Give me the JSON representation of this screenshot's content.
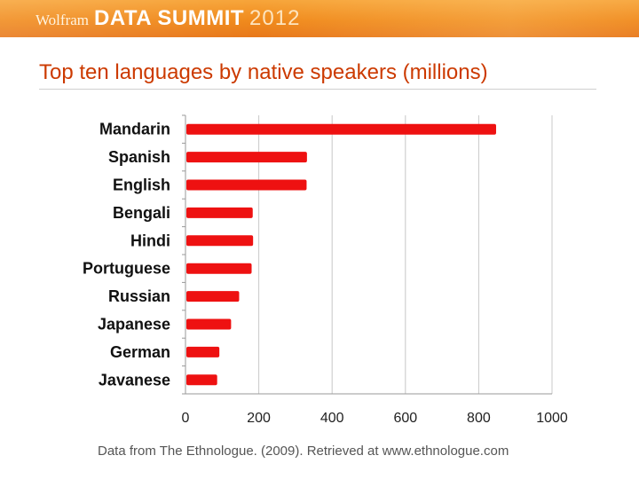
{
  "header": {
    "brand": "Wolfram",
    "event": "DATA SUMMIT",
    "year": "2012"
  },
  "slide": {
    "title": "Top ten languages by native speakers (millions)",
    "source": "Data from The Ethnologue. (2009). Retrieved at www.ethnologue.com"
  },
  "colors": {
    "banner": "#f08a1c",
    "title": "#cc3a00",
    "bar": "#ee1111",
    "grid": "#c8c8c8"
  },
  "chart_data": {
    "type": "bar",
    "orientation": "horizontal",
    "title": "",
    "xlabel": "",
    "ylabel": "",
    "categories": [
      "Mandarin",
      "Spanish",
      "English",
      "Bengali",
      "Hindi",
      "Portuguese",
      "Russian",
      "Japanese",
      "German",
      "Javanese"
    ],
    "values": [
      845,
      329,
      328,
      181,
      182,
      178,
      144,
      122,
      90,
      84
    ],
    "xlim": [
      0,
      1000
    ],
    "xticks": [
      0,
      200,
      400,
      600,
      800,
      1000
    ],
    "grid": true,
    "legend": "none"
  }
}
